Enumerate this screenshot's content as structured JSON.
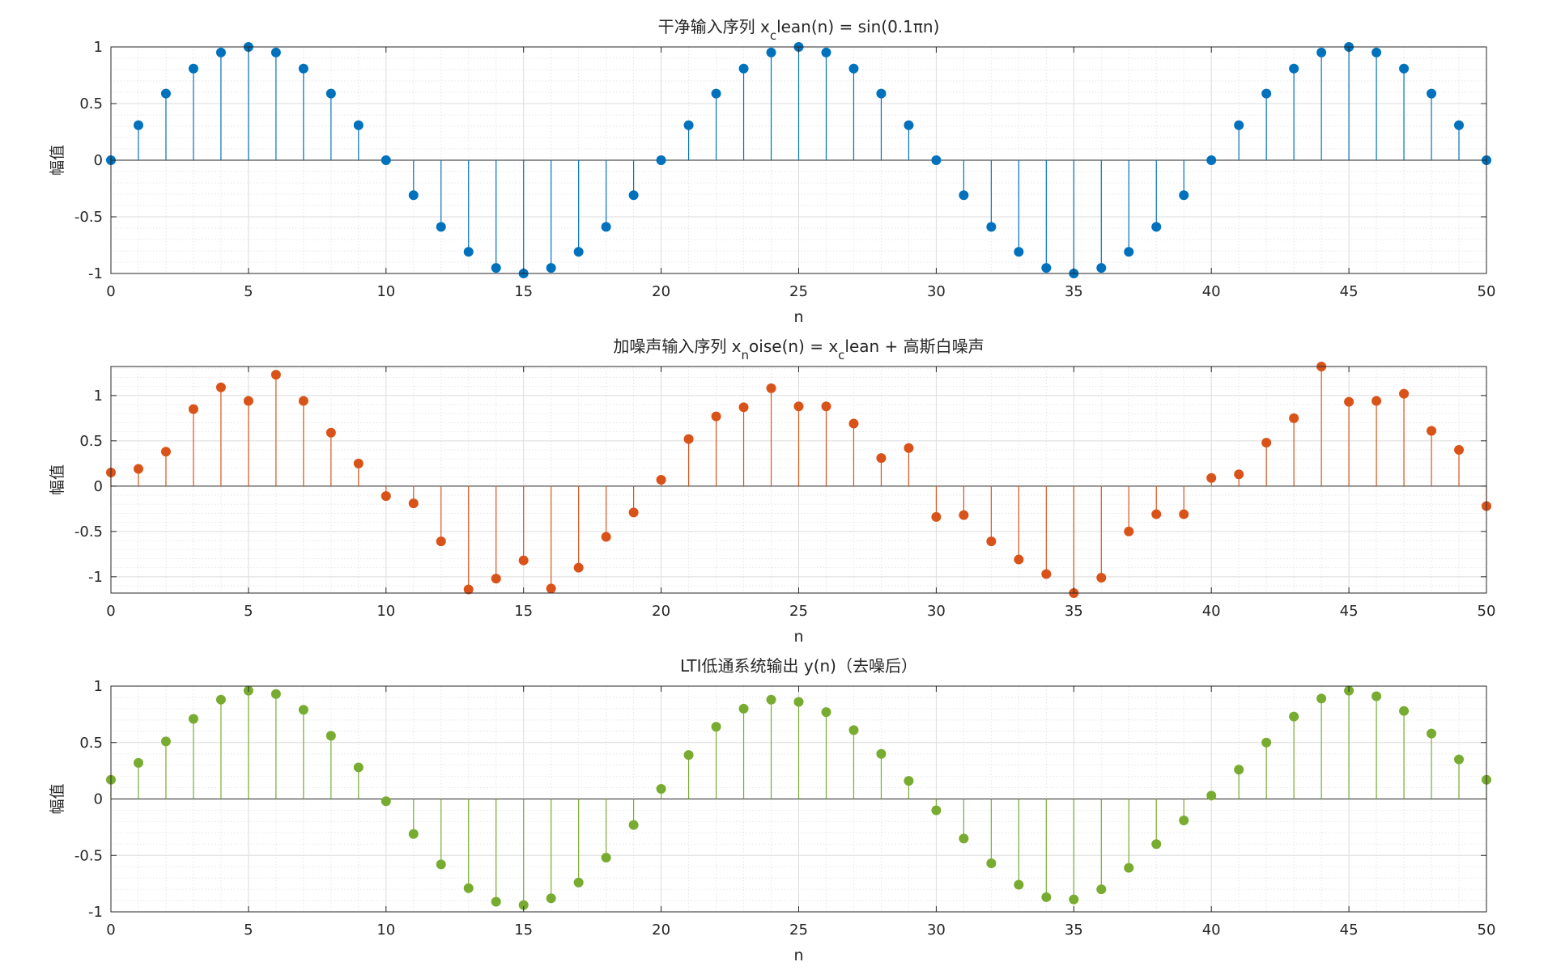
{
  "figure": {
    "background": "#ffffff"
  },
  "chart_data": [
    {
      "type": "stem",
      "title_parts": [
        {
          "text": "干净输入序列 x",
          "sub": false
        },
        {
          "text": "c",
          "sub": true
        },
        {
          "text": "lean(n) = sin(0.1πn)",
          "sub": false
        }
      ],
      "xlabel": "n",
      "ylabel": "幅值",
      "xlim": [
        0,
        50
      ],
      "ylim": [
        -1,
        1
      ],
      "xticks": [
        0,
        5,
        10,
        15,
        20,
        25,
        30,
        35,
        40,
        45,
        50
      ],
      "yticks": [
        -1,
        -0.5,
        0,
        0.5,
        1
      ],
      "ytick_labels": [
        "-1",
        "-0.5",
        "0",
        "0.5",
        "1"
      ],
      "grid": true,
      "minor_grid": true,
      "color": "#0072BD",
      "x": [
        0,
        1,
        2,
        3,
        4,
        5,
        6,
        7,
        8,
        9,
        10,
        11,
        12,
        13,
        14,
        15,
        16,
        17,
        18,
        19,
        20,
        21,
        22,
        23,
        24,
        25,
        26,
        27,
        28,
        29,
        30,
        31,
        32,
        33,
        34,
        35,
        36,
        37,
        38,
        39,
        40,
        41,
        42,
        43,
        44,
        45,
        46,
        47,
        48,
        49,
        50
      ],
      "y": [
        0,
        0.309,
        0.588,
        0.809,
        0.951,
        1,
        0.951,
        0.809,
        0.588,
        0.309,
        0,
        -0.309,
        -0.588,
        -0.809,
        -0.951,
        -1,
        -0.951,
        -0.809,
        -0.588,
        -0.309,
        0,
        0.309,
        0.588,
        0.809,
        0.951,
        1,
        0.951,
        0.809,
        0.588,
        0.309,
        0,
        -0.309,
        -0.588,
        -0.809,
        -0.951,
        -1,
        -0.951,
        -0.809,
        -0.588,
        -0.309,
        0,
        0.309,
        0.588,
        0.809,
        0.951,
        1,
        0.951,
        0.809,
        0.588,
        0.309,
        0
      ]
    },
    {
      "type": "stem",
      "title_parts": [
        {
          "text": "加噪声输入序列 x",
          "sub": false
        },
        {
          "text": "n",
          "sub": true
        },
        {
          "text": "oise(n) = x",
          "sub": false
        },
        {
          "text": "c",
          "sub": true
        },
        {
          "text": "lean + 高斯白噪声",
          "sub": false
        }
      ],
      "xlabel": "n",
      "ylabel": "幅值",
      "xlim": [
        0,
        50
      ],
      "ylim": [
        -1.18,
        1.32
      ],
      "xticks": [
        0,
        5,
        10,
        15,
        20,
        25,
        30,
        35,
        40,
        45,
        50
      ],
      "yticks": [
        -1,
        -0.5,
        0,
        0.5,
        1
      ],
      "ytick_labels": [
        "-1",
        "-0.5",
        "0",
        "0.5",
        "1"
      ],
      "grid": true,
      "minor_grid": true,
      "color": "#D95319",
      "x": [
        0,
        1,
        2,
        3,
        4,
        5,
        6,
        7,
        8,
        9,
        10,
        11,
        12,
        13,
        14,
        15,
        16,
        17,
        18,
        19,
        20,
        21,
        22,
        23,
        24,
        25,
        26,
        27,
        28,
        29,
        30,
        31,
        32,
        33,
        34,
        35,
        36,
        37,
        38,
        39,
        40,
        41,
        42,
        43,
        44,
        45,
        46,
        47,
        48,
        49,
        50
      ],
      "y": [
        0.15,
        0.19,
        0.38,
        0.85,
        1.09,
        0.94,
        1.23,
        0.94,
        0.59,
        0.25,
        -0.11,
        -0.19,
        -0.61,
        -1.14,
        -1.02,
        -0.82,
        -1.13,
        -0.9,
        -0.56,
        -0.29,
        0.07,
        0.52,
        0.77,
        0.87,
        1.08,
        0.88,
        0.88,
        0.69,
        0.31,
        0.42,
        -0.34,
        -0.32,
        -0.61,
        -0.81,
        -0.97,
        -1.18,
        -1.01,
        -0.5,
        -0.31,
        -0.31,
        0.09,
        0.13,
        0.48,
        0.75,
        1.32,
        0.93,
        0.94,
        1.02,
        0.61,
        0.4,
        -0.22
      ]
    },
    {
      "type": "stem",
      "title_parts": [
        {
          "text": "LTI低通系统输出 y(n)（去噪后）",
          "sub": false
        }
      ],
      "xlabel": "n",
      "ylabel": "幅值",
      "xlim": [
        0,
        50
      ],
      "ylim": [
        -1,
        1
      ],
      "xticks": [
        0,
        5,
        10,
        15,
        20,
        25,
        30,
        35,
        40,
        45,
        50
      ],
      "yticks": [
        -1,
        -0.5,
        0,
        0.5,
        1
      ],
      "ytick_labels": [
        "-1",
        "-0.5",
        "0",
        "0.5",
        "1"
      ],
      "grid": true,
      "minor_grid": true,
      "color": "#77AC30",
      "x": [
        0,
        1,
        2,
        3,
        4,
        5,
        6,
        7,
        8,
        9,
        10,
        11,
        12,
        13,
        14,
        15,
        16,
        17,
        18,
        19,
        20,
        21,
        22,
        23,
        24,
        25,
        26,
        27,
        28,
        29,
        30,
        31,
        32,
        33,
        34,
        35,
        36,
        37,
        38,
        39,
        40,
        41,
        42,
        43,
        44,
        45,
        46,
        47,
        48,
        49,
        50
      ],
      "y": [
        0.17,
        0.32,
        0.51,
        0.71,
        0.88,
        0.96,
        0.93,
        0.79,
        0.56,
        0.28,
        -0.02,
        -0.31,
        -0.58,
        -0.79,
        -0.91,
        -0.94,
        -0.88,
        -0.74,
        -0.52,
        -0.23,
        0.09,
        0.39,
        0.64,
        0.8,
        0.88,
        0.86,
        0.77,
        0.61,
        0.4,
        0.16,
        -0.1,
        -0.35,
        -0.57,
        -0.76,
        -0.87,
        -0.89,
        -0.8,
        -0.61,
        -0.4,
        -0.19,
        0.03,
        0.26,
        0.5,
        0.73,
        0.89,
        0.96,
        0.91,
        0.78,
        0.58,
        0.35,
        0.17
      ]
    }
  ]
}
